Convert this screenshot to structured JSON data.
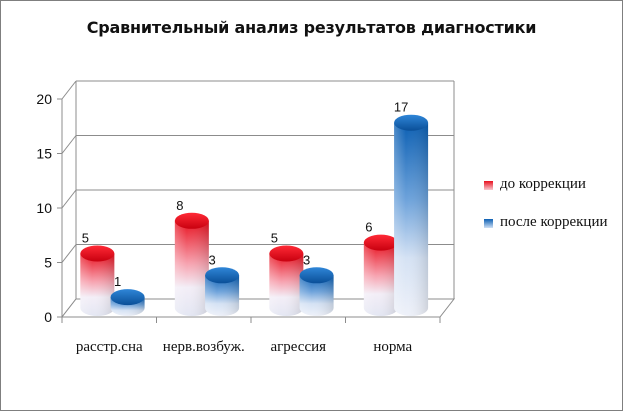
{
  "chart_data": {
    "type": "bar",
    "title": "Сравнительный анализ результатов диагностики",
    "categories": [
      "расстр.сна",
      "нерв.возбуж.",
      "агрессия",
      "норма"
    ],
    "series": [
      {
        "name": "до коррекции",
        "values": [
          5,
          8,
          5,
          6
        ],
        "color": "#e8101e"
      },
      {
        "name": "после коррекции",
        "values": [
          1,
          3,
          3,
          17
        ],
        "color": "#0b5fb3"
      }
    ],
    "ylim": [
      0,
      20
    ],
    "yticks": [
      "0",
      "5",
      "10",
      "15",
      "20"
    ],
    "grid": true,
    "legend": "right",
    "style": "3d-cylinder"
  }
}
